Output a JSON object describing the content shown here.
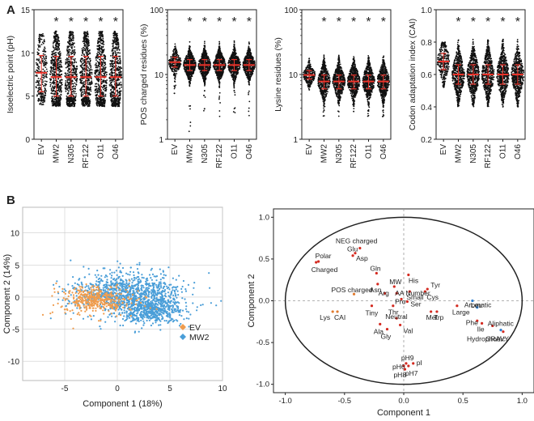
{
  "panel_labels": {
    "a": "A",
    "b": "B"
  },
  "colors": {
    "dots": "#111111",
    "median": "#e8332a",
    "star": "#e8332a",
    "ev": "#ef9c4d",
    "mw2": "#4a9ed8",
    "axis": "#222222",
    "grid": "#cccccc",
    "red_marker": "#d42a20",
    "blue_marker": "#2f7fd0",
    "orange_label": "#e07a2e",
    "blue_label": "#2f7fd0"
  },
  "chart_data": [
    {
      "type": "scatter",
      "subtype": "violin-dotplot",
      "ylabel": "Isoelectric point (pH)",
      "yscale": "linear",
      "ylim": [
        0,
        15
      ],
      "yticks": [
        "0",
        "5",
        "10",
        "15"
      ],
      "categories": [
        "EV",
        "MW2",
        "N305",
        "RF122",
        "O11",
        "O46"
      ],
      "medians": [
        7.7,
        7.2,
        7.2,
        7.2,
        7.2,
        7.2
      ],
      "q1": [
        5.5,
        5.0,
        5.0,
        5.0,
        5.0,
        5.0
      ],
      "q3": [
        9.7,
        9.6,
        9.6,
        9.6,
        9.6,
        9.6
      ],
      "range_min": [
        4.0,
        3.8,
        3.8,
        3.8,
        3.8,
        3.8
      ],
      "range_max": [
        12.2,
        12.5,
        12.5,
        12.5,
        12.5,
        12.5
      ],
      "significant": [
        false,
        true,
        true,
        true,
        true,
        true
      ],
      "star": "*"
    },
    {
      "type": "scatter",
      "subtype": "violin-dotplot",
      "ylabel": "POS charged residues (%)",
      "yscale": "log",
      "ylim": [
        1,
        100
      ],
      "yticks": [
        "1",
        "10",
        "100"
      ],
      "categories": [
        "EV",
        "MW2",
        "N305",
        "RF122",
        "O11",
        "O46"
      ],
      "medians": [
        15.5,
        14.0,
        14.0,
        14.0,
        14.0,
        14.0
      ],
      "q1": [
        13.0,
        11.5,
        11.5,
        11.5,
        11.5,
        11.5
      ],
      "q3": [
        18.5,
        17.0,
        17.0,
        17.0,
        17.0,
        17.0
      ],
      "range_min": [
        5.0,
        1.3,
        2.0,
        2.0,
        2.0,
        2.0
      ],
      "range_max": [
        30,
        40,
        40,
        40,
        40,
        40
      ],
      "significant": [
        false,
        true,
        true,
        true,
        true,
        true
      ],
      "star": "*"
    },
    {
      "type": "scatter",
      "subtype": "violin-dotplot",
      "ylabel": "Lysine residues (%)",
      "yscale": "log",
      "ylim": [
        1,
        100
      ],
      "yticks": [
        "1",
        "10",
        "100"
      ],
      "categories": [
        "EV",
        "MW2",
        "N305",
        "RF122",
        "O11",
        "O46"
      ],
      "medians": [
        9.8,
        7.8,
        7.8,
        7.8,
        7.8,
        7.8
      ],
      "q1": [
        8.5,
        6.0,
        6.0,
        6.0,
        6.0,
        6.0
      ],
      "q3": [
        11.5,
        9.8,
        9.8,
        9.8,
        9.8,
        9.8
      ],
      "range_min": [
        5.5,
        2.2,
        2.2,
        2.2,
        2.2,
        2.2
      ],
      "range_max": [
        18,
        20,
        20,
        20,
        20,
        20
      ],
      "significant": [
        false,
        true,
        true,
        true,
        true,
        true
      ],
      "star": "*"
    },
    {
      "type": "scatter",
      "subtype": "violin-dotplot",
      "ylabel": "Codon adaptation index (CAI)",
      "yscale": "linear",
      "ylim": [
        0.2,
        1.0
      ],
      "yticks": [
        "0.2",
        "0.4",
        "0.6",
        "0.8",
        "1.0"
      ],
      "categories": [
        "EV",
        "MW2",
        "N305",
        "RF122",
        "O11",
        "O46"
      ],
      "medians": [
        0.68,
        0.6,
        0.6,
        0.6,
        0.6,
        0.6
      ],
      "q1": [
        0.63,
        0.54,
        0.54,
        0.54,
        0.54,
        0.54
      ],
      "q3": [
        0.73,
        0.66,
        0.66,
        0.66,
        0.66,
        0.66
      ],
      "range_min": [
        0.52,
        0.4,
        0.4,
        0.4,
        0.4,
        0.4
      ],
      "range_max": [
        0.8,
        0.82,
        0.82,
        0.82,
        0.82,
        0.82
      ],
      "significant": [
        false,
        true,
        true,
        true,
        true,
        true
      ],
      "star": "*"
    },
    {
      "type": "scatter",
      "title": "",
      "xlabel": "Component 1 (18%)",
      "ylabel": "Component 2 (14%)",
      "xlim": [
        -9,
        10
      ],
      "ylim": [
        -13,
        14
      ],
      "xticks": [
        "-5",
        "0",
        "5",
        "10"
      ],
      "yticks": [
        "-10",
        "-5",
        "0",
        "5",
        "10"
      ],
      "grid": true,
      "legend_position": "bottom-right",
      "series": [
        {
          "name": "EV",
          "center": [
            -2.0,
            -0.5
          ],
          "spread": [
            1.8,
            1.9
          ],
          "count": 420
        },
        {
          "name": "MW2",
          "center": [
            1.0,
            0.6
          ],
          "spread": [
            2.6,
            2.9
          ],
          "count": 1500
        }
      ]
    },
    {
      "type": "scatter",
      "subtype": "loading-plot",
      "xlabel": "Component 1",
      "ylabel": "Component 2",
      "xlim": [
        -1.1,
        1.1
      ],
      "ylim": [
        -1.1,
        1.1
      ],
      "xticks": [
        "-1.0",
        "-0.5",
        "0.0",
        "0.5",
        "1.0"
      ],
      "yticks": [
        "-1.0",
        "-0.5",
        "0.0",
        "0.5",
        "1.0"
      ],
      "circle_radius": 1.0,
      "points": [
        {
          "label": "NEG charged",
          "x": -0.37,
          "y": 0.63,
          "group": "red"
        },
        {
          "label": "Glu",
          "x": -0.41,
          "y": 0.57,
          "group": "red"
        },
        {
          "label": "Asp",
          "x": -0.43,
          "y": 0.54,
          "group": "red"
        },
        {
          "label": "Polar",
          "x": -0.72,
          "y": 0.47,
          "group": "red"
        },
        {
          "label": "Charged",
          "x": -0.74,
          "y": 0.46,
          "group": "red"
        },
        {
          "label": "Gln",
          "x": -0.23,
          "y": 0.33,
          "group": "red"
        },
        {
          "label": "His",
          "x": 0.04,
          "y": 0.31,
          "group": "red"
        },
        {
          "label": "Asn",
          "x": -0.22,
          "y": 0.2,
          "group": "red"
        },
        {
          "label": "MW",
          "x": -0.08,
          "y": 0.17,
          "group": "red"
        },
        {
          "label": "Tyr",
          "x": 0.2,
          "y": 0.14,
          "group": "red"
        },
        {
          "label": "Small",
          "x": 0.05,
          "y": 0.11,
          "group": "red"
        },
        {
          "label": "Cys",
          "x": 0.18,
          "y": 0.11,
          "group": "red"
        },
        {
          "label": "POS charged",
          "x": -0.42,
          "y": 0.08,
          "group": "orange"
        },
        {
          "label": "Arg",
          "x": -0.16,
          "y": 0.09,
          "group": "red"
        },
        {
          "label": "AA Number",
          "x": -0.06,
          "y": 0.09,
          "group": "red"
        },
        {
          "label": "Pro",
          "x": -0.02,
          "y": 0.02,
          "group": "red"
        },
        {
          "label": "Ser",
          "x": 0.03,
          "y": -0.01,
          "group": "red"
        },
        {
          "label": "Thr",
          "x": -0.09,
          "y": -0.06,
          "group": "red"
        },
        {
          "label": "Tiny",
          "x": -0.27,
          "y": -0.06,
          "group": "red"
        },
        {
          "label": "Large",
          "x": 0.45,
          "y": -0.06,
          "group": "red"
        },
        {
          "label": "Aromatic",
          "x": 0.58,
          "y": 0.0,
          "group": "blue"
        },
        {
          "label": "Leu",
          "x": 0.62,
          "y": -0.08,
          "group": "blue"
        },
        {
          "label": "Met",
          "x": 0.23,
          "y": -0.13,
          "group": "red"
        },
        {
          "label": "Trp",
          "x": 0.28,
          "y": -0.13,
          "group": "red"
        },
        {
          "label": "Lys",
          "x": -0.6,
          "y": -0.13,
          "group": "orange"
        },
        {
          "label": "CAI",
          "x": -0.56,
          "y": -0.13,
          "group": "orange"
        },
        {
          "label": "Neutral",
          "x": -0.06,
          "y": -0.21,
          "group": "red"
        },
        {
          "label": "Phe",
          "x": 0.62,
          "y": -0.24,
          "group": "red"
        },
        {
          "label": "Ile",
          "x": 0.66,
          "y": -0.27,
          "group": "red"
        },
        {
          "label": "Aliphatic",
          "x": 0.75,
          "y": -0.3,
          "group": "red"
        },
        {
          "label": "Ala",
          "x": -0.2,
          "y": -0.28,
          "group": "red"
        },
        {
          "label": "Val",
          "x": -0.03,
          "y": -0.29,
          "group": "red"
        },
        {
          "label": "Gly",
          "x": -0.14,
          "y": -0.34,
          "group": "red"
        },
        {
          "label": "Hydrophobic",
          "x": 0.82,
          "y": -0.35,
          "group": "blue"
        },
        {
          "label": "GRAVY",
          "x": 0.84,
          "y": -0.37,
          "group": "red"
        },
        {
          "label": "pH9",
          "x": 0.02,
          "y": -0.75,
          "group": "red"
        },
        {
          "label": "pI",
          "x": 0.08,
          "y": -0.75,
          "group": "red"
        },
        {
          "label": "pH6",
          "x": 0.0,
          "y": -0.78,
          "group": "red"
        },
        {
          "label": "pH7",
          "x": 0.04,
          "y": -0.78,
          "group": "red"
        },
        {
          "label": "pH8",
          "x": 0.01,
          "y": -0.82,
          "group": "red"
        }
      ]
    }
  ]
}
